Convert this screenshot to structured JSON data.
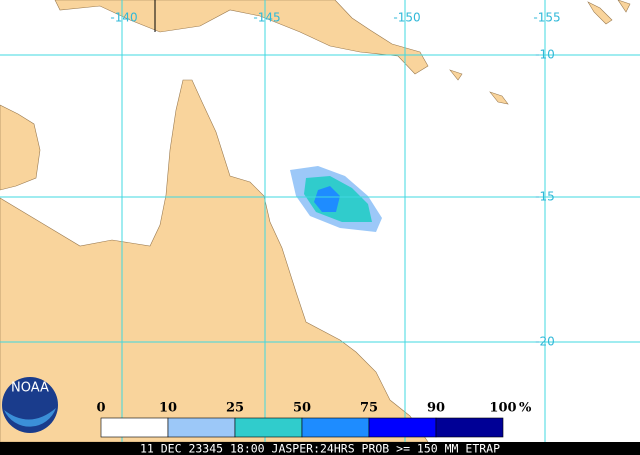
{
  "map": {
    "longitude_labels": [
      "-140",
      "-145",
      "-150",
      "-155"
    ],
    "latitude_labels": [
      "-10",
      "-15",
      "-20"
    ],
    "logo_text": "NOAA",
    "colorbar": {
      "ticks": [
        "0",
        "10",
        "25",
        "50",
        "75",
        "90",
        "100"
      ],
      "unit": "%",
      "colors": [
        "#ffffff",
        "#9cc8f8",
        "#30cccc",
        "#1e8cff",
        "#0000ff",
        "#000096"
      ]
    },
    "footer": "11 DEC 23345 18:00 JASPER:24HRS PROB >= 150 MM ETRAP"
  }
}
